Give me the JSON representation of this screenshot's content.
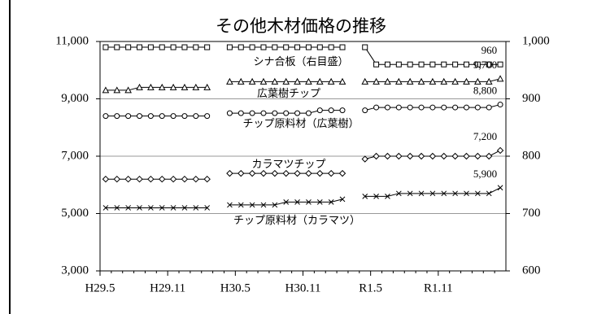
{
  "chart_data": {
    "type": "line",
    "title": "その他木材価格の推移",
    "categories": [
      "H29.5",
      null,
      null,
      null,
      null,
      null,
      "H29.11",
      null,
      null,
      null,
      null,
      null,
      "H30.5",
      null,
      null,
      null,
      null,
      null,
      "H30.11",
      null,
      null,
      null,
      null,
      null,
      "R1.5",
      null,
      null,
      null,
      null,
      null,
      "R1.11",
      null,
      null,
      null,
      null,
      null
    ],
    "ylim": [
      3000,
      11000
    ],
    "yticks": [
      {
        "value": 3000,
        "label": "3,000"
      },
      {
        "value": 5000,
        "label": "5,000"
      },
      {
        "value": 7000,
        "label": "7,000"
      },
      {
        "value": 9000,
        "label": "9,000"
      },
      {
        "value": 11000,
        "label": "11,000"
      }
    ],
    "y2lim": [
      600,
      1000
    ],
    "y2ticks": [
      600,
      700,
      800,
      900,
      {
        "value": 1000,
        "label": "1,000"
      }
    ],
    "grid": true,
    "series": [
      {
        "name": "シナ合板（右目盛）",
        "axis": "y2",
        "marker": "square",
        "color": "#000000",
        "values": [
          990,
          990,
          990,
          990,
          990,
          990,
          990,
          990,
          990,
          990,
          null,
          990,
          990,
          990,
          990,
          990,
          990,
          990,
          990,
          990,
          990,
          990,
          null,
          990,
          960,
          960,
          960,
          960,
          960,
          960,
          960,
          960,
          960,
          960,
          960,
          960
        ],
        "value_labels": [
          null,
          null,
          null,
          null,
          null,
          null,
          null,
          null,
          null,
          null,
          null,
          null,
          null,
          null,
          null,
          null,
          null,
          null,
          null,
          null,
          null,
          null,
          null,
          null,
          null,
          null,
          null,
          null,
          null,
          null,
          null,
          null,
          null,
          null,
          null,
          "960"
        ]
      },
      {
        "name": "広葉樹チップ",
        "marker": "triangle",
        "color": "#000000",
        "values": [
          9300,
          9300,
          9300,
          9400,
          9400,
          9400,
          9400,
          9400,
          9400,
          9400,
          null,
          9600,
          9600,
          9600,
          9600,
          9600,
          9600,
          9600,
          9600,
          9600,
          9600,
          9600,
          null,
          9600,
          9600,
          9600,
          9600,
          9600,
          9600,
          9600,
          9600,
          9600,
          9600,
          9600,
          9600,
          9700
        ],
        "value_labels": [
          null,
          null,
          null,
          null,
          null,
          null,
          null,
          null,
          null,
          null,
          null,
          null,
          null,
          null,
          null,
          null,
          null,
          null,
          null,
          null,
          null,
          null,
          null,
          null,
          null,
          null,
          null,
          null,
          null,
          null,
          null,
          null,
          null,
          null,
          null,
          "9,700"
        ]
      },
      {
        "name": "チップ原料材（広葉樹）",
        "marker": "circle",
        "color": "#000000",
        "values": [
          8400,
          8400,
          8400,
          8400,
          8400,
          8400,
          8400,
          8400,
          8400,
          8400,
          null,
          8500,
          8500,
          8500,
          8500,
          8500,
          8500,
          8500,
          8500,
          8600,
          8600,
          8600,
          null,
          8600,
          8700,
          8700,
          8700,
          8700,
          8700,
          8700,
          8700,
          8700,
          8700,
          8700,
          8700,
          8800
        ],
        "value_labels": [
          null,
          null,
          null,
          null,
          null,
          null,
          null,
          null,
          null,
          null,
          null,
          null,
          null,
          null,
          null,
          null,
          null,
          null,
          null,
          null,
          null,
          null,
          null,
          null,
          null,
          null,
          null,
          null,
          null,
          null,
          null,
          null,
          null,
          null,
          null,
          "8,800"
        ]
      },
      {
        "name": "カラマツチップ",
        "marker": "diamond",
        "color": "#000000",
        "values": [
          6200,
          6200,
          6200,
          6200,
          6200,
          6200,
          6200,
          6200,
          6200,
          6200,
          null,
          6400,
          6400,
          6400,
          6400,
          6400,
          6400,
          6400,
          6400,
          6400,
          6400,
          6400,
          null,
          6900,
          7000,
          7000,
          7000,
          7000,
          7000,
          7000,
          7000,
          7000,
          7000,
          7000,
          7000,
          7200
        ],
        "value_labels": [
          null,
          null,
          null,
          null,
          null,
          null,
          null,
          null,
          null,
          null,
          null,
          null,
          null,
          null,
          null,
          null,
          null,
          null,
          null,
          null,
          null,
          null,
          null,
          null,
          null,
          null,
          null,
          null,
          null,
          null,
          null,
          null,
          null,
          null,
          null,
          "7,200"
        ]
      },
      {
        "name": "チップ原料材（カラマツ）",
        "marker": "x",
        "color": "#000000",
        "values": [
          5200,
          5200,
          5200,
          5200,
          5200,
          5200,
          5200,
          5200,
          5200,
          5200,
          null,
          5300,
          5300,
          5300,
          5300,
          5300,
          5400,
          5400,
          5400,
          5400,
          5400,
          5500,
          null,
          5600,
          5600,
          5600,
          5700,
          5700,
          5700,
          5700,
          5700,
          5700,
          5700,
          5700,
          5700,
          5900
        ],
        "value_labels": [
          null,
          null,
          null,
          null,
          null,
          null,
          null,
          null,
          null,
          null,
          null,
          null,
          null,
          null,
          null,
          null,
          null,
          null,
          null,
          null,
          null,
          null,
          null,
          null,
          null,
          null,
          null,
          null,
          null,
          null,
          null,
          null,
          null,
          null,
          null,
          "5,900"
        ]
      }
    ]
  }
}
